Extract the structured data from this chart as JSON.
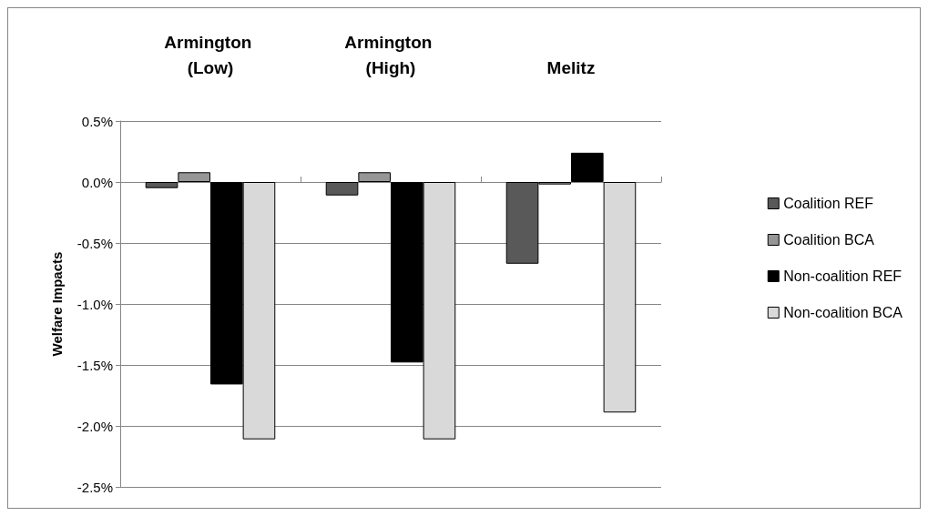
{
  "chart_data": {
    "type": "bar",
    "ylabel": "Welfare Impacts",
    "categories": [
      "Armington (Low)",
      "Armington (High)",
      "Melitz"
    ],
    "series": [
      {
        "name": "Coalition REF",
        "color": "#595959",
        "values": [
          -0.05,
          -0.11,
          -0.67
        ]
      },
      {
        "name": "Coalition BCA",
        "color": "#969696",
        "values": [
          0.08,
          0.08,
          -0.02
        ]
      },
      {
        "name": "Non-coalition REF",
        "color": "#000000",
        "values": [
          -1.66,
          -1.48,
          0.24
        ]
      },
      {
        "name": "Non-coalition BCA",
        "color": "#d9d9d9",
        "values": [
          -2.11,
          -2.11,
          -1.89
        ]
      }
    ],
    "ylim": [
      -2.5,
      0.5
    ],
    "yticks": [
      {
        "value": -2.5,
        "label": "-2.5%"
      },
      {
        "value": -2,
        "label": "-2.0%"
      },
      {
        "value": -1.5,
        "label": "-1.5%"
      },
      {
        "value": -1,
        "label": "-1.0%"
      },
      {
        "value": -0.5,
        "label": "-0.5%"
      },
      {
        "value": 0,
        "label": "0.0%"
      },
      {
        "value": 0.5,
        "label": "0.5%"
      }
    ],
    "grid": "y",
    "legend": "right"
  }
}
